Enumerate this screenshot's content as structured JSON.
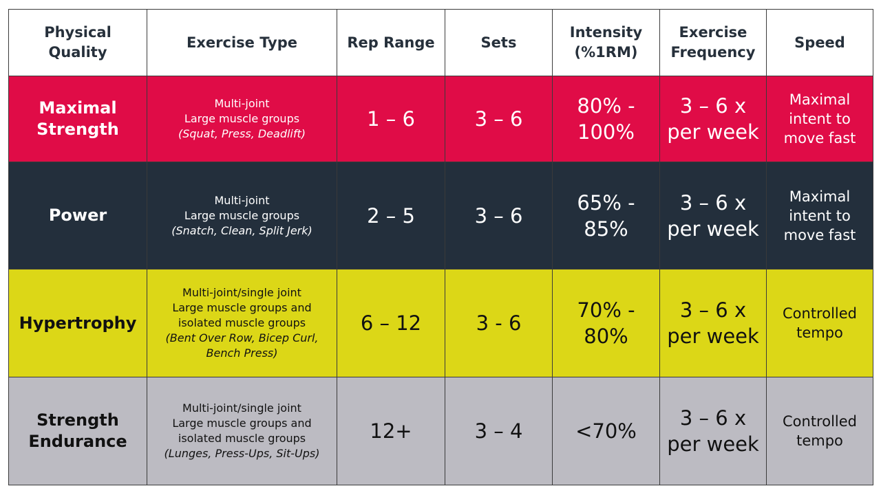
{
  "colors": {
    "maximal_strength_bg": "#e00c47",
    "power_bg": "#232f3c",
    "hypertrophy_bg": "#dcd717",
    "strength_endurance_bg": "#bcbbc2",
    "light_text": "#ffffff",
    "dark_text": "#111111",
    "header_text": "#26303b"
  },
  "headers": [
    [
      "Physical",
      "Quality"
    ],
    [
      "Exercise Type"
    ],
    [
      "Rep Range"
    ],
    [
      "Sets"
    ],
    [
      "Intensity",
      "(%1RM)"
    ],
    [
      "Exercise",
      "Frequency"
    ],
    [
      "Speed"
    ]
  ],
  "rows": [
    {
      "quality": [
        "Maximal",
        "Strength"
      ],
      "exercise_lines": [
        "Multi-joint",
        "Large muscle groups"
      ],
      "exercise_examples": [
        "(Squat, Press, Deadlift)"
      ],
      "rep_range": "1 – 6",
      "sets": "3 – 6",
      "intensity": [
        "80% -",
        "100%"
      ],
      "frequency": [
        "3 – 6 x",
        "per week"
      ],
      "speed": [
        "Maximal",
        "intent to",
        "move fast"
      ]
    },
    {
      "quality": [
        "Power"
      ],
      "exercise_lines": [
        "Multi-joint",
        "Large muscle groups"
      ],
      "exercise_examples": [
        "(Snatch, Clean, Split Jerk)"
      ],
      "rep_range": "2 – 5",
      "sets": "3 – 6",
      "intensity": [
        "65% -",
        "85%"
      ],
      "frequency": [
        "3 – 6 x",
        "per week"
      ],
      "speed": [
        "Maximal",
        "intent to",
        "move fast"
      ]
    },
    {
      "quality": [
        "Hypertrophy"
      ],
      "exercise_lines": [
        "Multi-joint/single joint",
        "Large muscle groups and",
        "isolated muscle groups"
      ],
      "exercise_examples": [
        "(Bent Over Row, Bicep Curl,",
        "Bench Press)"
      ],
      "rep_range": "6 – 12",
      "sets": "3 - 6",
      "intensity": [
        "70% -",
        "80%"
      ],
      "frequency": [
        "3 – 6 x",
        "per week"
      ],
      "speed": [
        "Controlled",
        "tempo"
      ]
    },
    {
      "quality": [
        "Strength",
        "Endurance"
      ],
      "exercise_lines": [
        "Multi-joint/single joint",
        "Large muscle groups and",
        "isolated muscle groups"
      ],
      "exercise_examples": [
        "(Lunges, Press-Ups, Sit-Ups)"
      ],
      "rep_range": "12+",
      "sets": "3 – 4",
      "intensity": [
        "<70%"
      ],
      "frequency": [
        "3 – 6 x",
        "per week"
      ],
      "speed": [
        "Controlled",
        "tempo"
      ]
    }
  ]
}
